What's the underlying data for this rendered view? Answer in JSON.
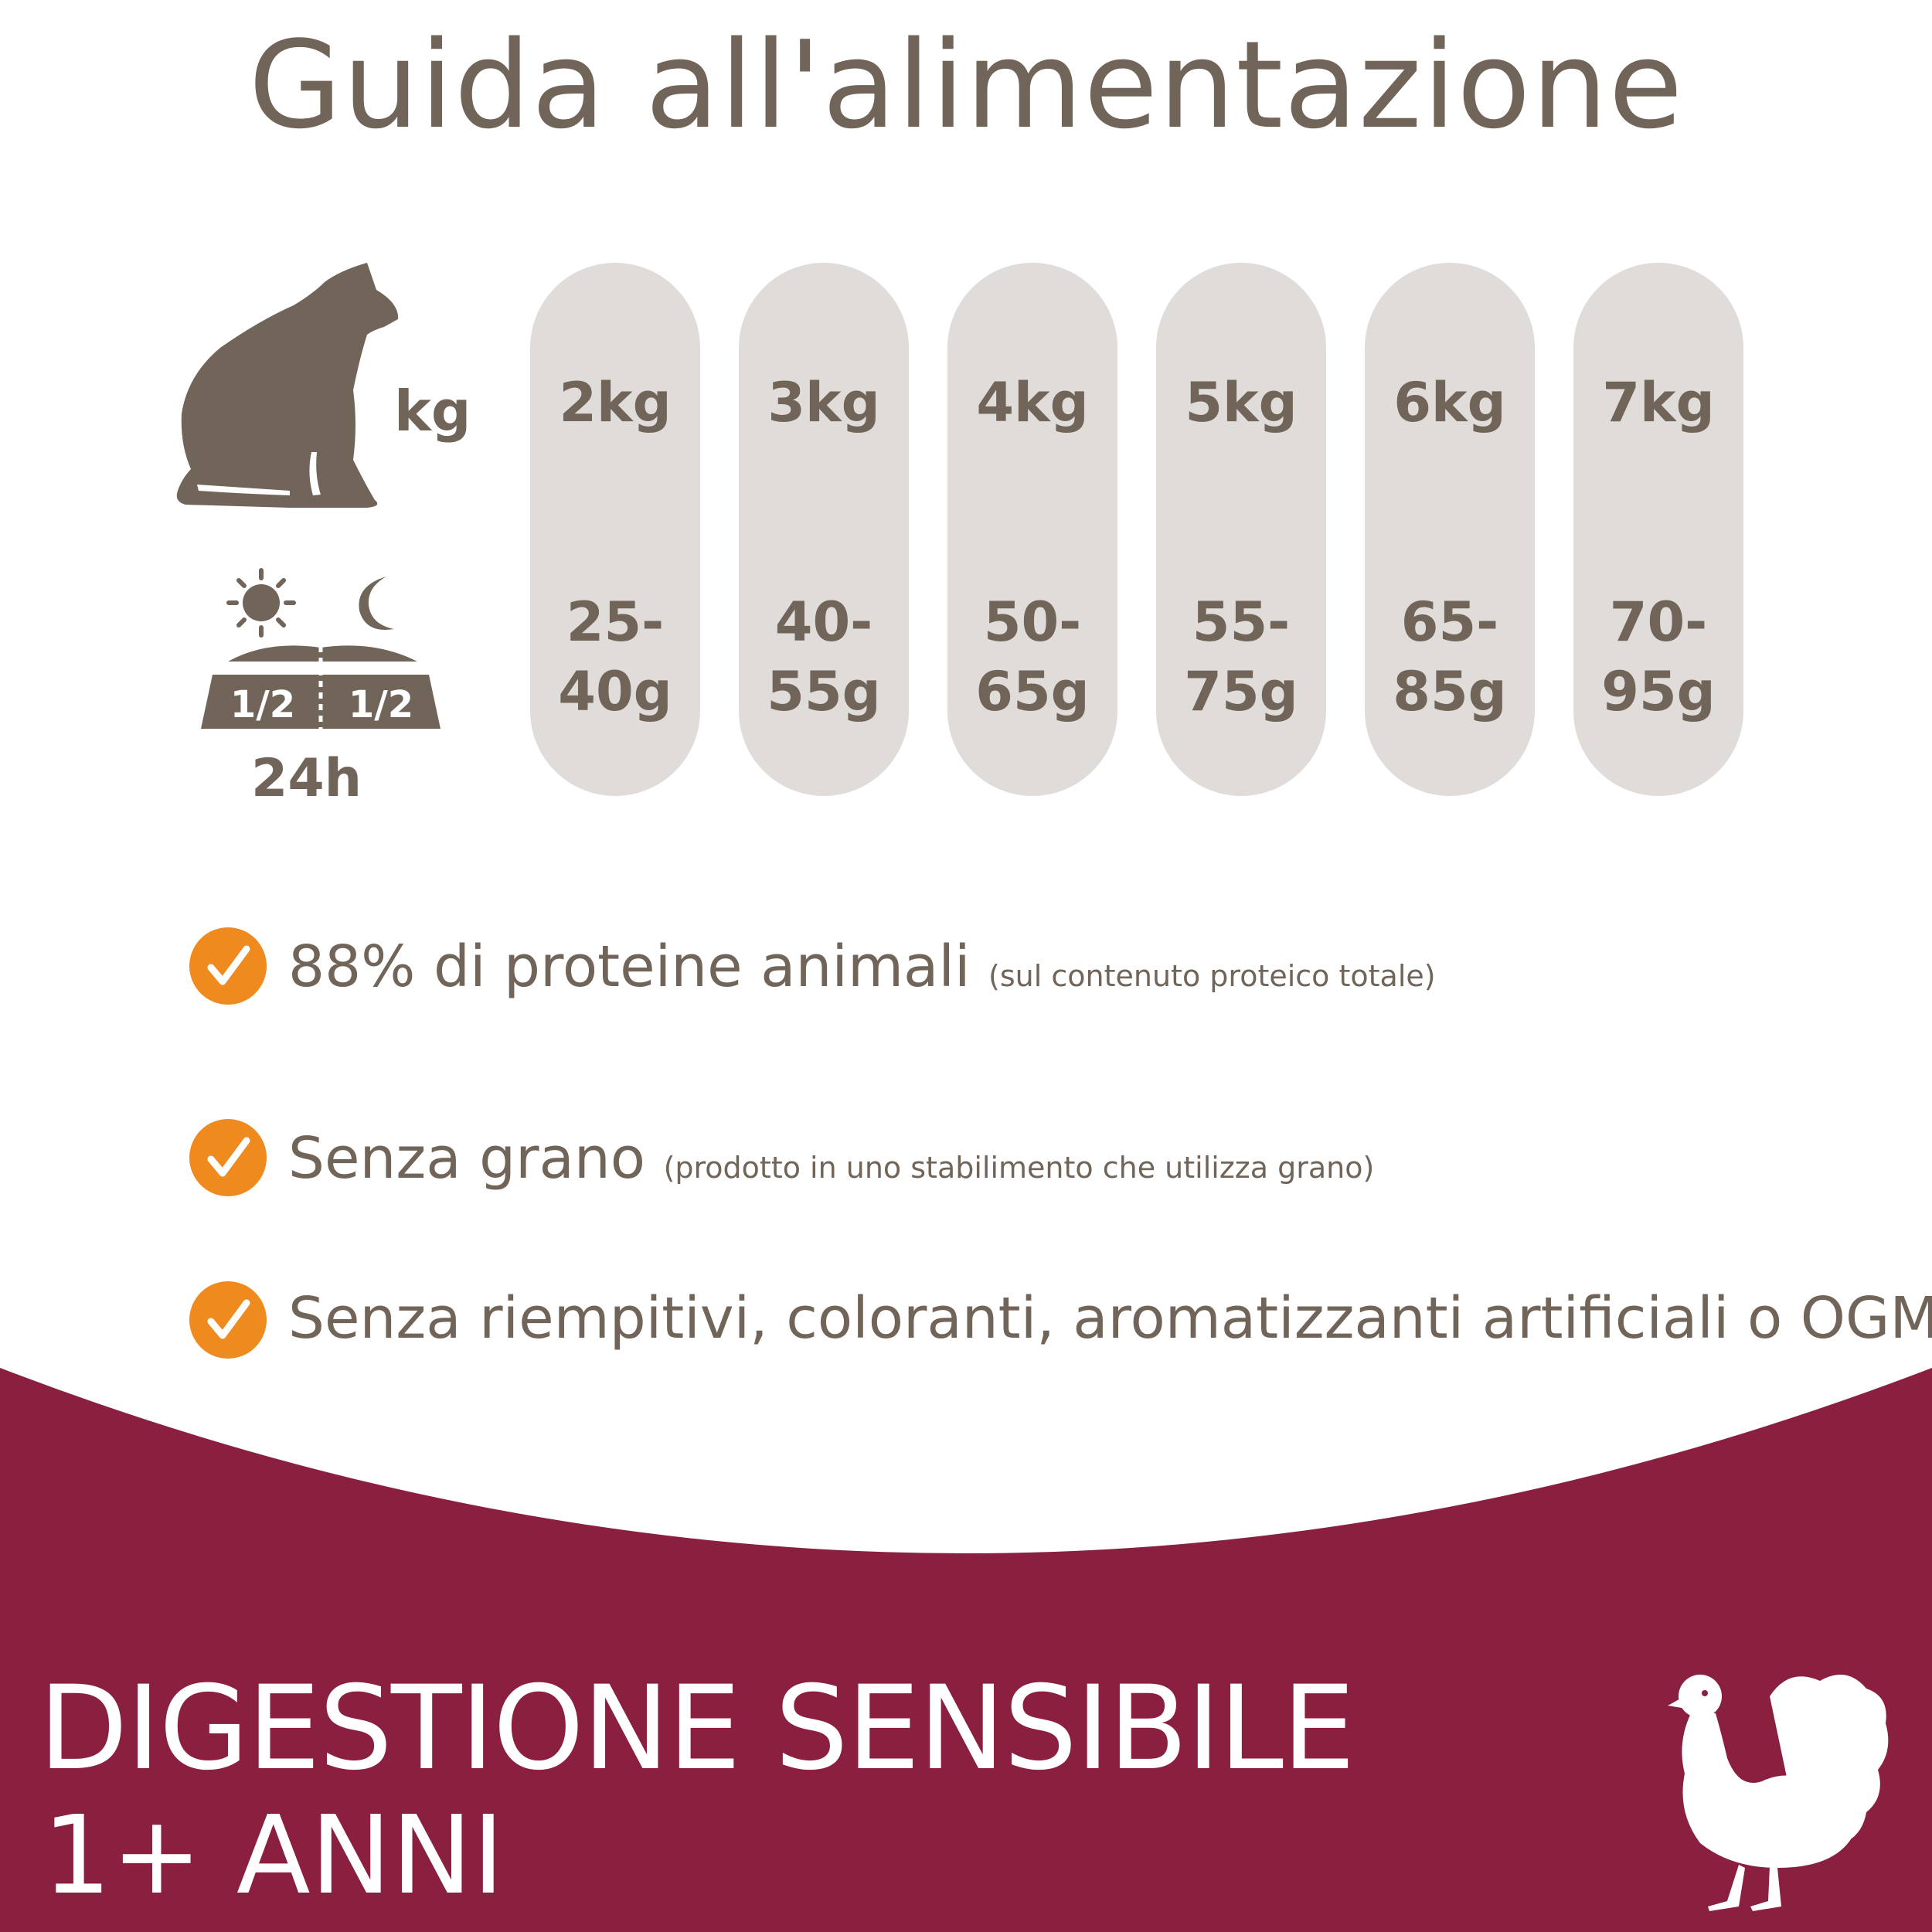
{
  "title": "Guida all'alimentazione",
  "feeding_table": {
    "weight_label": "kg",
    "daily_label": "24h",
    "portion_left": "1/2",
    "portion_right": "1/2",
    "columns": [
      {
        "weight": "2kg",
        "grams": "25-\n40g"
      },
      {
        "weight": "3kg",
        "grams": "40-\n55g"
      },
      {
        "weight": "4kg",
        "grams": "50-\n65g"
      },
      {
        "weight": "5kg",
        "grams": "55-\n75g"
      },
      {
        "weight": "6kg",
        "grams": "65-\n85g"
      },
      {
        "weight": "7kg",
        "grams": "70-\n95g"
      }
    ]
  },
  "features": [
    {
      "text": "88% di proteine animali",
      "note": "(sul contenuto proteico totale)"
    },
    {
      "text": "Senza grano",
      "note": "(prodotto in uno stabilimento che utilizza grano)"
    },
    {
      "text": "Senza riempitivi, coloranti, aromatizzanti artificiali o OGM",
      "note": ""
    }
  ],
  "product": {
    "name": "DIGESTIONE SENSIBILE",
    "age": "1+ ANNI"
  },
  "colors": {
    "text": "#716459",
    "pill": "#e0dcda",
    "check": "#ef8a1e",
    "banner": "#8a1f3f"
  },
  "icons": [
    "cat-icon",
    "sun-icon",
    "moon-icon",
    "food-bowl-icon",
    "check-icon",
    "turkey-icon"
  ]
}
